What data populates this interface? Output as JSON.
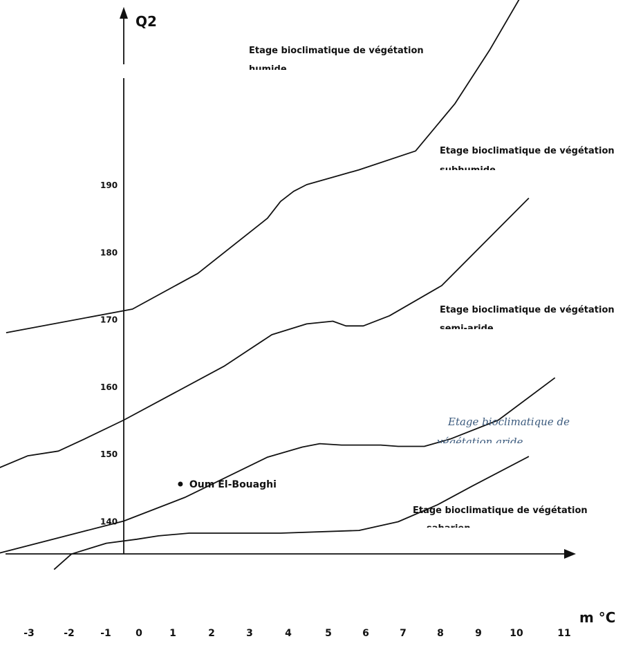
{
  "chart_data": {
    "type": "line",
    "ylabel": "Q2",
    "xlabel": "m °C",
    "y_ticks": [
      "140",
      "150",
      "160",
      "170",
      "180",
      "190"
    ],
    "x_ticks": [
      "-3",
      "-2",
      "-1",
      "0",
      "1",
      "2",
      "3",
      "4",
      "5",
      "6",
      "7",
      "8",
      "9",
      "10",
      "11"
    ],
    "zones": [
      {
        "line1": "Etage bioclimatique de végétation",
        "line2": "humide"
      },
      {
        "line1": "Etage bioclimatique de végétation",
        "line2": "subhumide"
      },
      {
        "line1": "Etage bioclimatique de végétation",
        "line2": "semi-aride"
      },
      {
        "line1": "Etage bioclimatique de",
        "line2": "végétation aride"
      },
      {
        "line1": "Etage bioclimatique de végétation",
        "line2": "saharien"
      }
    ],
    "series": [
      {
        "values": [
          [
            -2.7,
            168
          ],
          [
            0.2,
            171.5
          ],
          [
            1.7,
            176.8
          ],
          [
            3.3,
            185
          ],
          [
            3.6,
            187.5
          ],
          [
            3.9,
            189
          ],
          [
            4.2,
            190
          ],
          [
            5.4,
            192.2
          ],
          [
            6.7,
            195
          ],
          [
            7.6,
            202
          ],
          [
            8.4,
            210
          ],
          [
            9.3,
            220
          ]
        ]
      },
      {
        "values": [
          [
            -3.2,
            147
          ],
          [
            -2.2,
            149.7
          ],
          [
            -1.5,
            150.4
          ],
          [
            -0.9,
            152.2
          ],
          [
            0,
            155
          ],
          [
            2.3,
            163
          ],
          [
            3.4,
            167.7
          ],
          [
            4.2,
            169.3
          ],
          [
            4.8,
            169.7
          ],
          [
            5.1,
            169
          ],
          [
            5.5,
            169
          ],
          [
            6.1,
            170.5
          ],
          [
            7.3,
            175
          ],
          [
            9.3,
            188
          ]
        ]
      },
      {
        "values": [
          [
            -3.0,
            135
          ],
          [
            0,
            140
          ],
          [
            1.4,
            143.5
          ],
          [
            3.3,
            149.5
          ],
          [
            4.1,
            151
          ],
          [
            4.5,
            151.5
          ],
          [
            5.0,
            151.3
          ],
          [
            5.9,
            151.3
          ],
          [
            6.3,
            151.1
          ],
          [
            6.9,
            151.1
          ],
          [
            7.5,
            152.2
          ],
          [
            8.6,
            155
          ],
          [
            9.9,
            161.3
          ]
        ]
      },
      {
        "values": [
          [
            -1.6,
            132.8
          ],
          [
            -1.2,
            135.1
          ],
          [
            -0.8,
            135.9
          ],
          [
            -0.4,
            136.7
          ],
          [
            0.3,
            137.3
          ],
          [
            0.8,
            137.8
          ],
          [
            1.5,
            138.2
          ],
          [
            3.6,
            138.2
          ],
          [
            5.4,
            138.6
          ],
          [
            6.3,
            139.9
          ],
          [
            7.2,
            142.4
          ],
          [
            8.0,
            145.2
          ],
          [
            9.3,
            149.6
          ]
        ]
      }
    ],
    "points": [
      {
        "label": "Oum El-Bouaghi",
        "x": 1.3,
        "y": 145.5
      }
    ]
  }
}
